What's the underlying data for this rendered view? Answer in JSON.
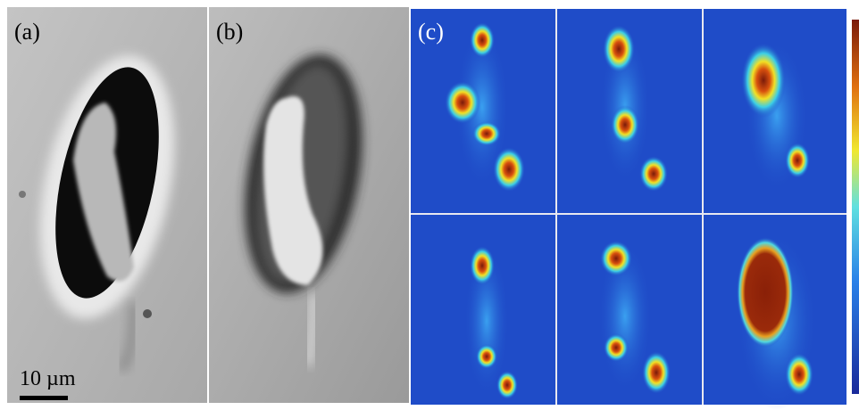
{
  "panels": [
    {
      "label": "(a)"
    },
    {
      "label": "(b)"
    },
    {
      "label": "(c)"
    }
  ],
  "scale_bar": {
    "label": "10 µm"
  }
}
